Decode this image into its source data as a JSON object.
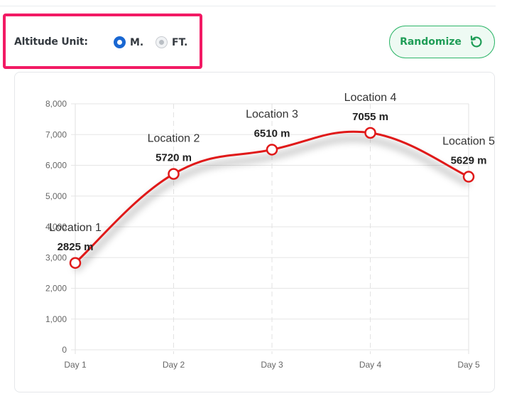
{
  "controls": {
    "unit_label": "Altitude Unit:",
    "unit_options": [
      {
        "label": "M.",
        "selected": true
      },
      {
        "label": "FT.",
        "selected": false
      }
    ],
    "randomize_label": "Randomize",
    "randomize_icon": "refresh-icon"
  },
  "colors": {
    "line": "#e01919",
    "highlight_border": "#f21a64",
    "accent_green": "#2fb66a",
    "radio_selected": "#1967d2"
  },
  "chart_data": {
    "type": "line",
    "categories": [
      "Day 1",
      "Day 2",
      "Day 3",
      "Day 4",
      "Day 5"
    ],
    "series": [
      {
        "values": [
          2825,
          5720,
          6510,
          7055,
          5629
        ],
        "point_labels": [
          "Location 1",
          "Location 2",
          "Location 3",
          "Location 4",
          "Location 5"
        ],
        "value_labels": [
          "2825 m",
          "5720 m",
          "6510 m",
          "7055 m",
          "5629 m"
        ]
      }
    ],
    "ylim": [
      0,
      8000
    ],
    "yticks": [
      "0",
      "1,000",
      "2,000",
      "3,000",
      "4,000",
      "5,000",
      "6,000",
      "7,000",
      "8,000"
    ],
    "grid": true
  }
}
